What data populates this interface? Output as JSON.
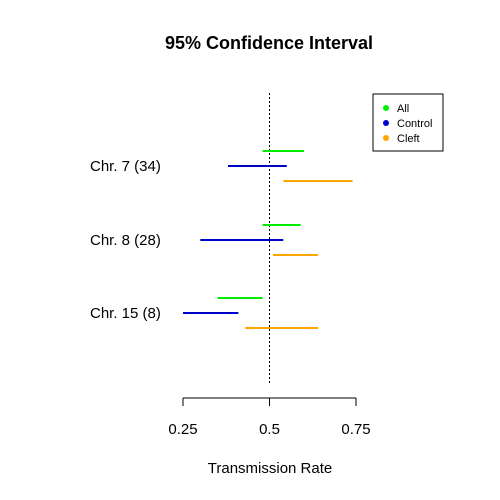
{
  "chart_data": {
    "type": "interval",
    "title": "95% Confidence Interval",
    "xlabel": "Transmission Rate",
    "ylabel": "",
    "xlim": [
      0.25,
      0.75
    ],
    "xticks": [
      0.25,
      0.5,
      0.75
    ],
    "xtick_labels": [
      "0.25",
      "0.5",
      "0.75"
    ],
    "reference_line": 0.5,
    "legend_position": "top-right",
    "series": [
      {
        "name": "All",
        "color": "#00ee00"
      },
      {
        "name": "Control",
        "color": "#0000cc"
      },
      {
        "name": "Cleft",
        "color": "#ffa500"
      }
    ],
    "groups": [
      {
        "label": "Chr. 7 (34)",
        "intervals": [
          {
            "series": "All",
            "low": 0.48,
            "high": 0.6
          },
          {
            "series": "Control",
            "low": 0.38,
            "high": 0.55
          },
          {
            "series": "Cleft",
            "low": 0.54,
            "high": 0.74
          }
        ]
      },
      {
        "label": "Chr. 8 (28)",
        "intervals": [
          {
            "series": "All",
            "low": 0.48,
            "high": 0.59
          },
          {
            "series": "Control",
            "low": 0.3,
            "high": 0.54
          },
          {
            "series": "Cleft",
            "low": 0.51,
            "high": 0.64
          }
        ]
      },
      {
        "label": "Chr. 15 (8)",
        "intervals": [
          {
            "series": "All",
            "low": 0.35,
            "high": 0.48
          },
          {
            "series": "Control",
            "low": 0.25,
            "high": 0.41
          },
          {
            "series": "Cleft",
            "low": 0.43,
            "high": 0.64
          }
        ]
      }
    ]
  }
}
